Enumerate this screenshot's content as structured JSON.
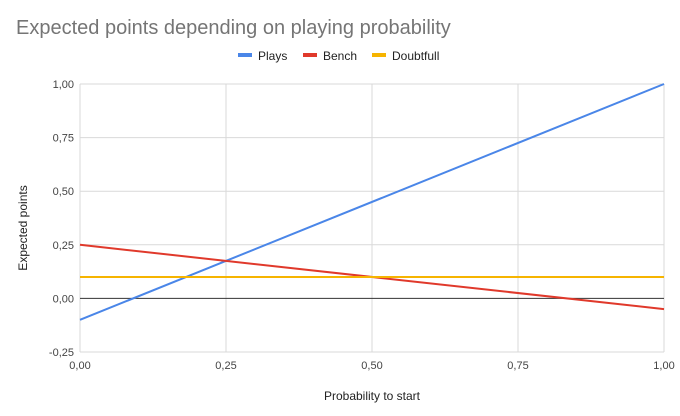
{
  "chart_data": {
    "type": "line",
    "title": "Expected points depending on playing probability",
    "xlabel": "Probability to start",
    "ylabel": "Expected points",
    "xlim": [
      0,
      1
    ],
    "ylim": [
      -0.25,
      1
    ],
    "x_ticks": [
      "0,00",
      "0,25",
      "0,50",
      "0,75",
      "1,00"
    ],
    "x_tick_values": [
      0,
      0.25,
      0.5,
      0.75,
      1
    ],
    "y_ticks": [
      "-0,25",
      "0,00",
      "0,25",
      "0,50",
      "0,75",
      "1,00"
    ],
    "y_tick_values": [
      -0.25,
      0,
      0.25,
      0.5,
      0.75,
      1
    ],
    "grid": true,
    "legend_position": "top",
    "series": [
      {
        "name": "Plays",
        "color": "#4a86e8",
        "x": [
          0,
          1
        ],
        "y": [
          -0.1,
          1.0
        ]
      },
      {
        "name": "Bench",
        "color": "#e0392b",
        "x": [
          0,
          1
        ],
        "y": [
          0.25,
          -0.05
        ]
      },
      {
        "name": "Doubtfull",
        "color": "#f6b400",
        "x": [
          0,
          1
        ],
        "y": [
          0.1,
          0.1
        ]
      }
    ]
  }
}
